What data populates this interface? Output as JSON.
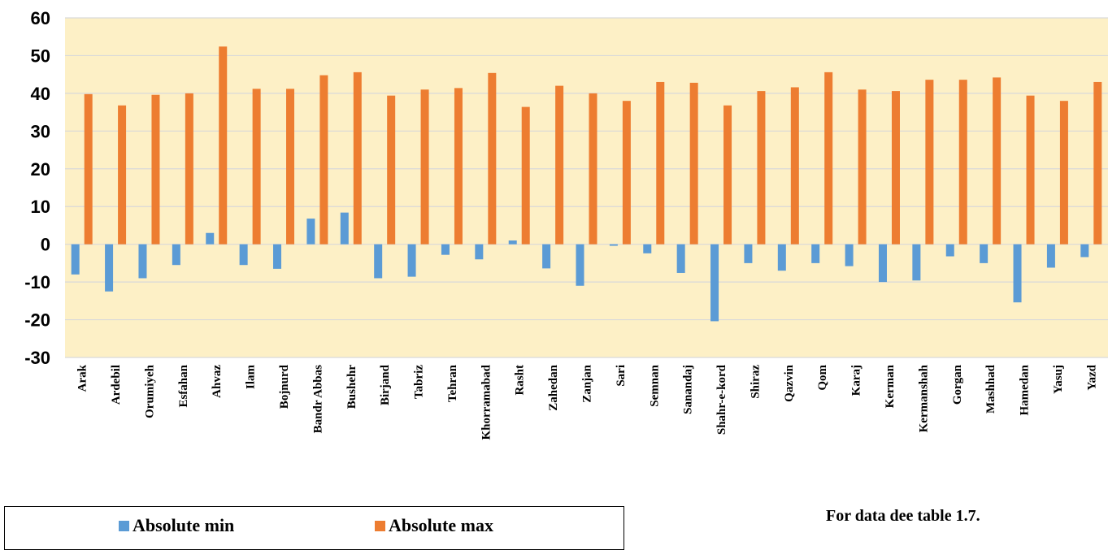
{
  "chart_data": {
    "type": "bar",
    "categories": [
      "Arak",
      "Ardebil",
      "Orumiyeh",
      "Esfahan",
      "Ahvaz",
      "Ilam",
      "Bojnurd",
      "Bandr Abbas",
      "Bushehr",
      "Birjand",
      "Tabriz",
      "Tehran",
      "Khorramabad",
      "Rasht",
      "Zahedan",
      "Zanjan",
      "Sari",
      "Semnan",
      "Sanandaj",
      "Shahr-e-kord",
      "Shiraz",
      "Qazvin",
      "Qom",
      "Karaj",
      "Kerman",
      "Kermanshah",
      "Gorgan",
      "Mashhad",
      "Hamedan",
      "Yasuj",
      "Yazd"
    ],
    "series": [
      {
        "name": "Absolute min",
        "color": "#5b9bd5",
        "values": [
          -8.0,
          -12.5,
          -9.0,
          -5.5,
          3.0,
          -5.5,
          -6.5,
          6.8,
          8.4,
          -9.0,
          -8.6,
          -2.8,
          -4.0,
          1.0,
          -6.4,
          -11.0,
          -0.4,
          -2.4,
          -7.6,
          -20.4,
          -5.0,
          -7.0,
          -5.0,
          -5.8,
          -10.0,
          -9.6,
          -3.2,
          -5.0,
          -15.4,
          -6.2,
          -3.4
        ]
      },
      {
        "name": "Absolute max",
        "color": "#ed7d31",
        "values": [
          39.8,
          36.8,
          39.6,
          40.0,
          52.4,
          41.2,
          41.2,
          44.8,
          45.6,
          39.4,
          41.0,
          41.4,
          45.4,
          36.4,
          42.0,
          40.0,
          38.0,
          43.0,
          42.8,
          36.8,
          40.6,
          41.6,
          45.6,
          41.0,
          40.6,
          43.6,
          43.6,
          44.2,
          39.4,
          38.0,
          43.0
        ]
      }
    ],
    "ylim": [
      -30,
      60
    ],
    "yticks": [
      "60",
      "50",
      "40",
      "30",
      "20",
      "10",
      "0",
      "-10",
      "-20",
      "-30"
    ],
    "grid": true,
    "legend_position": "bottom-left",
    "plot_background": "#fdf0c6",
    "gridline_color": "#d9d9d9"
  },
  "legend": {
    "min_label": "Absolute min",
    "max_label": "Absolute max"
  },
  "note": "For data dee table 1.7."
}
